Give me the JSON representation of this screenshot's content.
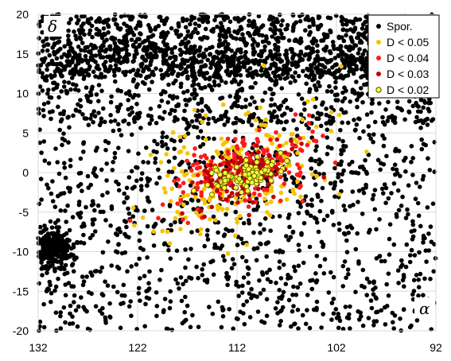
{
  "chart_data": {
    "type": "scatter",
    "title": "",
    "xlabel": "α",
    "ylabel": "δ",
    "xlim": [
      132,
      92
    ],
    "ylim": [
      -20,
      20
    ],
    "x_reversed": true,
    "x_ticks": [
      132,
      122,
      112,
      102,
      92
    ],
    "y_ticks": [
      -20,
      -15,
      -10,
      -5,
      0,
      5,
      10,
      15,
      20
    ],
    "grid": true,
    "legend_position": "top-right",
    "series": [
      {
        "name": "Spor.",
        "color": "#000000",
        "marker": "filled-circle",
        "approx_count": 3000,
        "clusters": [
          {
            "label": "north-band",
            "x_range": [
              132,
              92
            ],
            "y_range": [
              12,
              20
            ],
            "density": "very high"
          },
          {
            "label": "south-clump",
            "center": [
              130.5,
              -9.5
            ],
            "spread": [
              1.2,
              1.3
            ],
            "density": "very high"
          },
          {
            "label": "background",
            "x_range": [
              132,
              92
            ],
            "y_range": [
              -20,
              12
            ],
            "density": "medium"
          }
        ]
      },
      {
        "name": "D < 0.05",
        "color": "#f5c400",
        "marker": "filled-circle",
        "approx_count": 220,
        "region": {
          "x_range": [
            121,
            103
          ],
          "y_range": [
            -7.5,
            8.5
          ]
        }
      },
      {
        "name": "D < 0.04",
        "color": "#ff1a1a",
        "marker": "filled-circle",
        "approx_count": 200,
        "region": {
          "x_range": [
            120,
            104
          ],
          "y_range": [
            -6,
            6
          ]
        }
      },
      {
        "name": "D < 0.03",
        "color": "#c00000",
        "marker": "filled-circle",
        "approx_count": 120,
        "region": {
          "x_range": [
            117,
            106
          ],
          "y_range": [
            -4,
            3.5
          ]
        }
      },
      {
        "name": "D < 0.02",
        "color": "#ffff33",
        "edge_color": "#505000",
        "marker": "outlined-circle",
        "approx_count": 90,
        "region": {
          "x_range": [
            114.5,
            107
          ],
          "y_range": [
            -3,
            3
          ]
        }
      }
    ]
  }
}
